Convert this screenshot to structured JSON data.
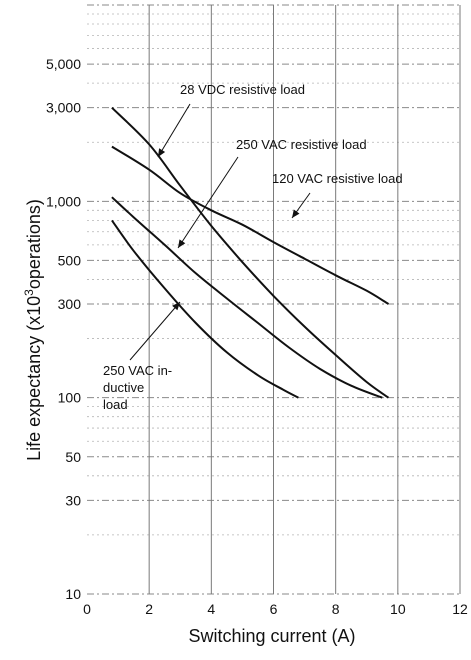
{
  "chart_data": {
    "type": "line",
    "title": "",
    "xlabel": "Switching current (A)",
    "ylabel_main": "Life expectancy (x10",
    "ylabel_sup": "3",
    "ylabel_tail": "operations)",
    "xlim": [
      0,
      12
    ],
    "ylim": [
      10,
      10000
    ],
    "yscale": "log",
    "grid": true,
    "xticks": [
      0,
      2,
      4,
      6,
      8,
      10,
      12
    ],
    "xtick_labels": [
      "0",
      "2",
      "4",
      "6",
      "8",
      "10",
      "12"
    ],
    "yticks": [
      10,
      30,
      50,
      100,
      300,
      500,
      1000,
      3000,
      5000
    ],
    "ytick_labels": [
      "10",
      "30",
      "50",
      "100",
      "300",
      "500",
      "1,000",
      "3,000",
      "5,000"
    ],
    "series": [
      {
        "name": "28 VDC resistive load",
        "x": [
          0.8,
          2.0,
          3.0,
          4.0,
          5.0,
          6.0,
          7.0,
          8.0,
          9.0,
          9.7
        ],
        "y": [
          3000,
          1950,
          1200,
          750,
          490,
          330,
          230,
          165,
          120,
          100
        ]
      },
      {
        "name": "250 VAC resistive load",
        "x": [
          0.8,
          1.5,
          2.5,
          3.5,
          4.5,
          5.5,
          6.5,
          7.5,
          8.5,
          9.5
        ],
        "y": [
          1050,
          830,
          600,
          430,
          320,
          240,
          180,
          140,
          115,
          100
        ]
      },
      {
        "name": "120 VAC resistive load",
        "x": [
          0.8,
          2.0,
          3.0,
          4.0,
          5.0,
          6.0,
          7.0,
          8.0,
          9.0,
          9.7
        ],
        "y": [
          1900,
          1450,
          1100,
          900,
          760,
          620,
          510,
          420,
          350,
          300
        ]
      },
      {
        "name": "250 VAC in-\nductive\nload",
        "x": [
          0.8,
          1.5,
          2.5,
          3.5,
          4.5,
          5.5,
          6.3,
          6.8
        ],
        "y": [
          800,
          560,
          360,
          240,
          170,
          130,
          110,
          100
        ]
      }
    ],
    "annotations": [
      {
        "lines": [
          "28 VDC resistive load"
        ]
      },
      {
        "lines": [
          "250 VAC resistive load"
        ]
      },
      {
        "lines": [
          "120 VAC resistive load"
        ]
      },
      {
        "lines": [
          "250 VAC in-",
          "ductive",
          "load"
        ]
      }
    ]
  }
}
